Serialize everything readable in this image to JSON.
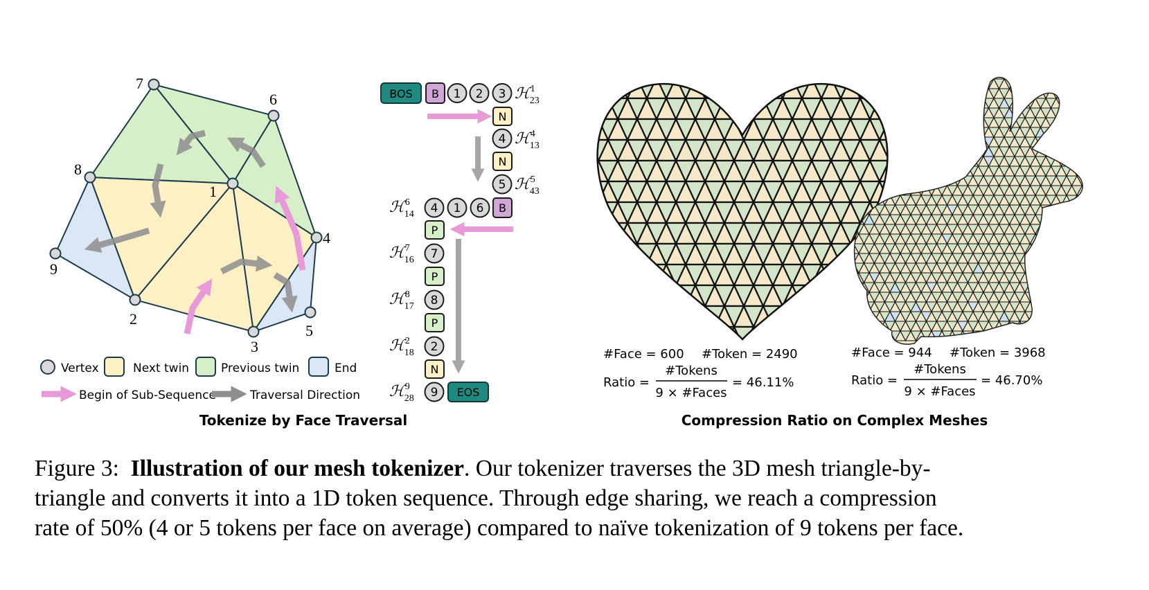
{
  "left_panel": {
    "title": "Tokenize by Face Traversal",
    "vertex_labels": [
      "1",
      "2",
      "3",
      "4",
      "5",
      "6",
      "7",
      "8",
      "9"
    ],
    "legend": {
      "vertex": "Vertex",
      "next_twin": "Next twin",
      "previous_twin": "Previous twin",
      "end": "End",
      "begin_sub_sequence": "Begin of Sub-Sequence",
      "traversal_direction": "Traversal Direction"
    }
  },
  "token_sequence": {
    "bos": "BOS",
    "eos": "EOS",
    "b": "B",
    "n": "N",
    "p": "P",
    "numbers": [
      "1",
      "2",
      "3",
      "4",
      "5",
      "6",
      "7",
      "8",
      "9"
    ],
    "h_symbol": "ℋ",
    "halfedges": [
      {
        "sup": "1",
        "sub": "23"
      },
      {
        "sup": "4",
        "sub": "13"
      },
      {
        "sup": "5",
        "sub": "43"
      },
      {
        "sup": "6",
        "sub": "14"
      },
      {
        "sup": "7",
        "sub": "16"
      },
      {
        "sup": "8",
        "sub": "17"
      },
      {
        "sup": "2",
        "sub": "18"
      },
      {
        "sup": "9",
        "sub": "28"
      }
    ]
  },
  "right_panel": {
    "title": "Compression Ratio on Complex Meshes",
    "heart": {
      "faces_text": "#Face = 600",
      "tokens_text": "#Token = 2490",
      "ratio_label": "Ratio =",
      "numerator": "#Tokens",
      "denominator": "9 × #Faces",
      "result": "= 46.11%"
    },
    "bunny": {
      "faces_text": "#Face = 944",
      "tokens_text": "#Token = 3968",
      "ratio_label": "Ratio =",
      "numerator": "#Tokens",
      "denominator": "9 × #Faces",
      "result": "= 46.70%"
    }
  },
  "caption": {
    "prefix": "Figure 3:",
    "bold": "Illustration of our mesh tokenizer",
    "line1_rest": ".  Our tokenizer traverses the 3D mesh triangle-by-",
    "line2": "triangle and converts it into a 1D token sequence.  Through edge sharing, we reach a compression",
    "line3": "rate of 50% (4 or 5 tokens per face on average) compared to naïve tokenization of 9 tokens per face."
  },
  "colors": {
    "next_twin": "#fdf0c4",
    "previous_twin": "#d7efc9",
    "end": "#dbe7f4",
    "vertex": "#d9d9d9",
    "bos_eos": "#1f8a80",
    "b_token": "#cfa6d6",
    "n_token": "#fdf0c4",
    "p_token": "#d7efc9",
    "begin_arrow": "#e89ad8",
    "traversal_arrow": "#8e8e8e",
    "mesh_cream": "#f4e8c8",
    "mesh_green": "#d3e4c9",
    "mesh_blue": "#cfe0f0"
  }
}
